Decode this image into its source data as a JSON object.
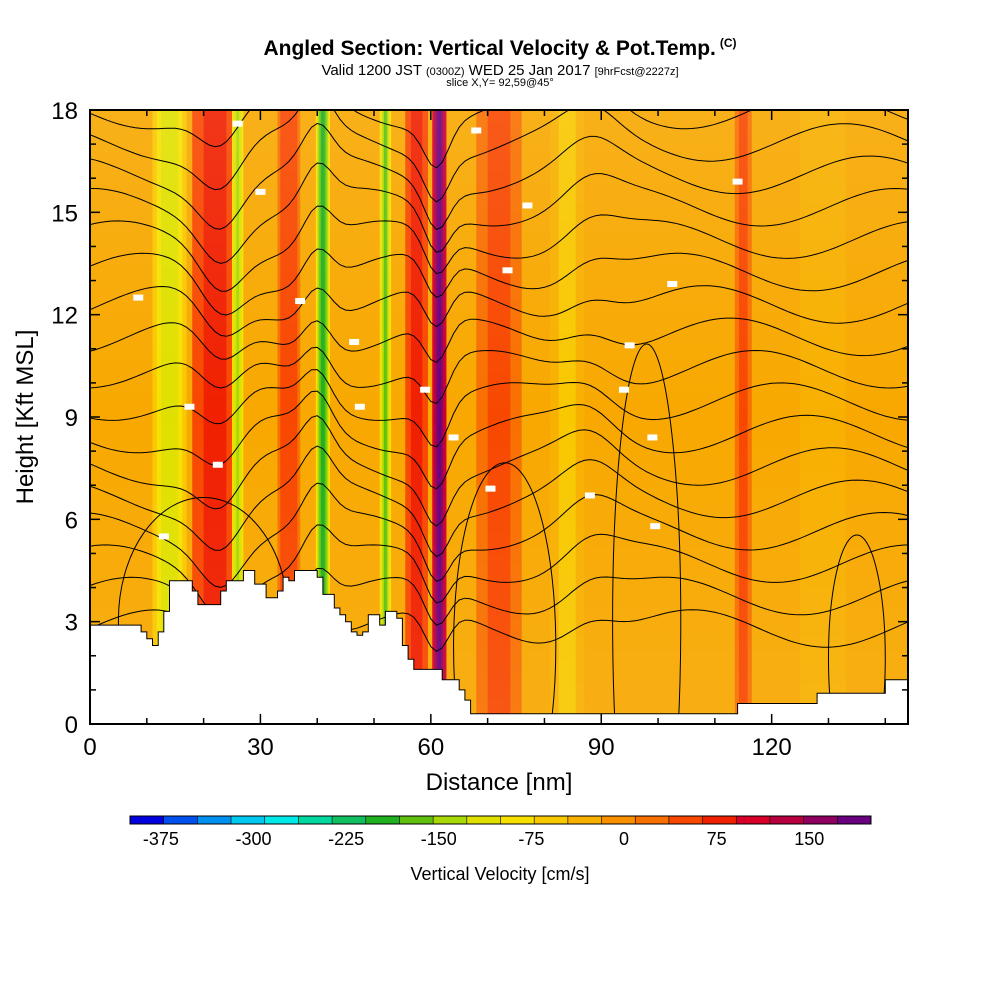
{
  "header": {
    "title": "Angled Section: Vertical Velocity & Pot.Temp.",
    "title_mark": "(C)",
    "subtitle_valid": "Valid 1200 JST",
    "subtitle_zulu": "(0300Z)",
    "subtitle_date": "WED 25 Jan 2017",
    "subtitle_fcst": "[9hrFcst@2227z]",
    "slice": "slice X,Y= 92,59@45°"
  },
  "chart_data": {
    "type": "heatmap",
    "xlabel": "Distance [nm]",
    "ylabel": "Height [Kft MSL]",
    "xlim": [
      0,
      144
    ],
    "ylim": [
      0,
      18
    ],
    "xticks": [
      "0",
      "30",
      "60",
      "90",
      "120"
    ],
    "yticks": [
      "0",
      "3",
      "6",
      "9",
      "12",
      "15",
      "18"
    ],
    "colorbar": {
      "label": "Vertical Velocity [cm/s]",
      "ticks": [
        "-375",
        "-300",
        "-225",
        "-150",
        "-75",
        "0",
        "75",
        "150"
      ],
      "colors": [
        "#0000e0",
        "#0050f0",
        "#0090f0",
        "#00c8f0",
        "#00e8e8",
        "#00d8a0",
        "#10c060",
        "#20b020",
        "#60c010",
        "#a8d808",
        "#e0e000",
        "#f8e000",
        "#f8c800",
        "#f8b000",
        "#f89000",
        "#f87000",
        "#f84800",
        "#f02000",
        "#d80028",
        "#b80040",
        "#900060",
        "#680080"
      ]
    },
    "velocity_columns": [
      {
        "x": 14,
        "width": 6,
        "value": -120
      },
      {
        "x": 22,
        "width": 8,
        "value": 90
      },
      {
        "x": 26,
        "width": 2,
        "value": -150
      },
      {
        "x": 35,
        "width": 4,
        "value": 60
      },
      {
        "x": 41,
        "width": 2.5,
        "value": -190
      },
      {
        "x": 52,
        "width": 2,
        "value": -170
      },
      {
        "x": 57.5,
        "width": 4,
        "value": 90
      },
      {
        "x": 61.5,
        "width": 2.5,
        "value": 190
      },
      {
        "x": 72,
        "width": 8,
        "value": 50
      },
      {
        "x": 84,
        "width": 6,
        "value": -60
      },
      {
        "x": 115,
        "width": 3,
        "value": 45
      },
      {
        "x": 129,
        "width": 8,
        "value": -40
      }
    ],
    "theta_label_points": [
      {
        "x": 13,
        "y": 5.5
      },
      {
        "x": 22.5,
        "y": 7.6
      },
      {
        "x": 17.5,
        "y": 9.3
      },
      {
        "x": 8.5,
        "y": 12.5
      },
      {
        "x": 37,
        "y": 12.4
      },
      {
        "x": 46.5,
        "y": 11.2
      },
      {
        "x": 47.5,
        "y": 9.3
      },
      {
        "x": 59,
        "y": 9.8
      },
      {
        "x": 64,
        "y": 8.4
      },
      {
        "x": 70.5,
        "y": 6.9
      },
      {
        "x": 88,
        "y": 6.7
      },
      {
        "x": 30,
        "y": 15.6
      },
      {
        "x": 26,
        "y": 17.6
      },
      {
        "x": 68,
        "y": 17.4
      },
      {
        "x": 77,
        "y": 15.2
      },
      {
        "x": 73.5,
        "y": 13.3
      },
      {
        "x": 95,
        "y": 11.1
      },
      {
        "x": 94,
        "y": 9.8
      },
      {
        "x": 99,
        "y": 8.4
      },
      {
        "x": 99.5,
        "y": 5.8
      },
      {
        "x": 102.5,
        "y": 12.9
      },
      {
        "x": 114,
        "y": 15.9
      }
    ],
    "terrain": [
      [
        0,
        2
      ],
      [
        0,
        2.9
      ],
      [
        3,
        2.9
      ],
      [
        3,
        2.9
      ],
      [
        9,
        2.9
      ],
      [
        9,
        2.7
      ],
      [
        10,
        2.7
      ],
      [
        10,
        2.5
      ],
      [
        11,
        2.5
      ],
      [
        11,
        2.3
      ],
      [
        12,
        2.3
      ],
      [
        12,
        2.7
      ],
      [
        13,
        2.7
      ],
      [
        13,
        3.3
      ],
      [
        14,
        3.3
      ],
      [
        14,
        4.2
      ],
      [
        18,
        4.2
      ],
      [
        18,
        3.9
      ],
      [
        19,
        3.9
      ],
      [
        19,
        3.5
      ],
      [
        23,
        3.5
      ],
      [
        23,
        3.9
      ],
      [
        24,
        3.9
      ],
      [
        24,
        4.2
      ],
      [
        27,
        4.2
      ],
      [
        27,
        4.5
      ],
      [
        29,
        4.5
      ],
      [
        29,
        4.1
      ],
      [
        31,
        4.1
      ],
      [
        31,
        3.7
      ],
      [
        33,
        3.7
      ],
      [
        33,
        3.9
      ],
      [
        34,
        3.9
      ],
      [
        34,
        4.3
      ],
      [
        35,
        4.3
      ],
      [
        35,
        4.2
      ],
      [
        36,
        4.2
      ],
      [
        36,
        4.5
      ],
      [
        40,
        4.5
      ],
      [
        40,
        4.3
      ],
      [
        41,
        4.3
      ],
      [
        41,
        3.8
      ],
      [
        43,
        3.8
      ],
      [
        43,
        3.4
      ],
      [
        44,
        3.4
      ],
      [
        44,
        3.2
      ],
      [
        45,
        3.2
      ],
      [
        45,
        3
      ],
      [
        46,
        3
      ],
      [
        46,
        2.7
      ],
      [
        47,
        2.7
      ],
      [
        47,
        2.6
      ],
      [
        48,
        2.6
      ],
      [
        48,
        2.7
      ],
      [
        49,
        2.7
      ],
      [
        49,
        3.2
      ],
      [
        51,
        3.2
      ],
      [
        51,
        2.9
      ],
      [
        52,
        2.9
      ],
      [
        52,
        3.3
      ],
      [
        54,
        3.3
      ],
      [
        54,
        3.1
      ],
      [
        55,
        3.1
      ],
      [
        55,
        2.3
      ],
      [
        56,
        2.3
      ],
      [
        56,
        1.9
      ],
      [
        57,
        1.9
      ],
      [
        57,
        1.6
      ],
      [
        62,
        1.6
      ],
      [
        62,
        1.3
      ],
      [
        65,
        1.3
      ],
      [
        65,
        1
      ],
      [
        66,
        1
      ],
      [
        66,
        0.7
      ],
      [
        67,
        0.7
      ],
      [
        67,
        0.3
      ],
      [
        114,
        0.3
      ],
      [
        114,
        0.6
      ],
      [
        128,
        0.6
      ],
      [
        128,
        0.9
      ],
      [
        140,
        0.9
      ],
      [
        140,
        1.3
      ],
      [
        144,
        1.3
      ],
      [
        144,
        0
      ]
    ]
  }
}
